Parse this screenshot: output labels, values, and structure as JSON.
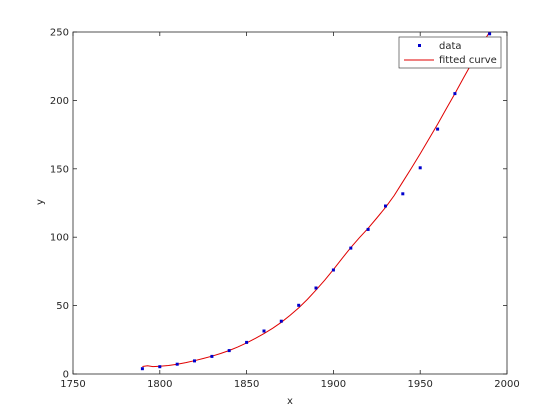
{
  "chart_data": {
    "type": "scatter",
    "title": "",
    "xlabel": "x",
    "ylabel": "y",
    "xlim": [
      1750,
      2000
    ],
    "ylim": [
      0,
      250
    ],
    "xticks": [
      "1750",
      "1800",
      "1850",
      "1900",
      "1950",
      "2000"
    ],
    "yticks": [
      "0",
      "50",
      "100",
      "150",
      "200",
      "250"
    ],
    "grid": false,
    "legend_position": "top-right",
    "series": [
      {
        "name": "data",
        "kind": "points",
        "color": "#0000cc",
        "x": [
          1790,
          1800,
          1810,
          1820,
          1830,
          1840,
          1850,
          1860,
          1870,
          1880,
          1890,
          1900,
          1910,
          1920,
          1930,
          1940,
          1950,
          1960,
          1970,
          1980,
          1990
        ],
        "y": [
          3.9,
          5.3,
          7.2,
          9.6,
          12.9,
          17.1,
          23.1,
          31.4,
          38.6,
          50.2,
          62.9,
          76.0,
          92.0,
          105.7,
          122.8,
          131.7,
          150.7,
          179.0,
          205.0,
          226.5,
          248.7
        ]
      },
      {
        "name": "fitted curve",
        "kind": "line",
        "color": "#e00000",
        "x": [
          1790,
          1793,
          1796,
          1800,
          1805,
          1810,
          1815,
          1820,
          1825,
          1830,
          1835,
          1840,
          1845,
          1850,
          1855,
          1860,
          1865,
          1870,
          1875,
          1880,
          1885,
          1890,
          1895,
          1900,
          1905,
          1910,
          1915,
          1920,
          1925,
          1930,
          1935,
          1940,
          1945,
          1950,
          1955,
          1960,
          1965,
          1970,
          1975,
          1980,
          1985,
          1990
        ],
        "y": [
          5.5,
          6.0,
          5.4,
          5.6,
          6.2,
          7.2,
          8.3,
          9.7,
          11.3,
          13.0,
          15.0,
          17.2,
          19.8,
          22.7,
          26.0,
          29.5,
          33.4,
          37.8,
          42.8,
          48.3,
          54.5,
          61.3,
          68.6,
          76.3,
          84.5,
          92.4,
          99.6,
          106.5,
          114.0,
          121.8,
          130.5,
          140.5,
          150.6,
          161.0,
          171.8,
          182.6,
          193.8,
          205.0,
          216.5,
          228.0,
          240.0,
          252.0
        ]
      }
    ]
  }
}
